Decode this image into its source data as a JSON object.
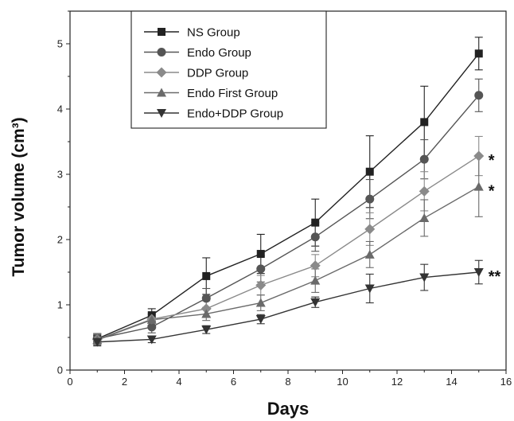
{
  "chart_data": {
    "type": "line",
    "xlabel": "Days",
    "ylabel": "Tumor volume (cm³)",
    "xlim": [
      0,
      16
    ],
    "ylim": [
      0,
      5.5
    ],
    "xticks": [
      "0",
      "2",
      "4",
      "6",
      "8",
      "10",
      "12",
      "14",
      "16"
    ],
    "yticks": [
      "0",
      "1",
      "2",
      "3",
      "4",
      "5"
    ],
    "x": [
      1,
      3,
      5,
      7,
      9,
      11,
      13,
      15
    ],
    "grid": false,
    "legend_position": "top-left",
    "series": [
      {
        "name": "NS Group",
        "marker": "square",
        "color": "#222222",
        "values": [
          0.48,
          0.84,
          1.44,
          1.78,
          2.26,
          3.04,
          3.8,
          4.85
        ],
        "errors": [
          0.08,
          0.1,
          0.28,
          0.3,
          0.36,
          0.55,
          0.55,
          0.25
        ]
      },
      {
        "name": "Endo Group",
        "marker": "circle",
        "color": "#555555",
        "values": [
          0.48,
          0.66,
          1.1,
          1.55,
          2.04,
          2.62,
          3.23,
          4.21
        ],
        "errors": [
          0.08,
          0.09,
          0.15,
          0.2,
          0.22,
          0.3,
          0.3,
          0.25
        ]
      },
      {
        "name": "DDP Group",
        "marker": "diamond",
        "color": "#8a8a8a",
        "values": [
          0.47,
          0.78,
          0.94,
          1.3,
          1.6,
          2.16,
          2.74,
          3.28
        ],
        "errors": [
          0.08,
          0.09,
          0.12,
          0.15,
          0.17,
          0.25,
          0.3,
          0.3
        ]
      },
      {
        "name": "Endo First Group",
        "marker": "triangle-up",
        "color": "#6a6a6a",
        "values": [
          0.46,
          0.77,
          0.86,
          1.03,
          1.37,
          1.77,
          2.33,
          2.81
        ],
        "errors": [
          0.08,
          0.08,
          0.1,
          0.12,
          0.18,
          0.2,
          0.28,
          0.46
        ]
      },
      {
        "name": "Endo+DDP Group",
        "marker": "triangle-down",
        "color": "#333333",
        "values": [
          0.43,
          0.47,
          0.62,
          0.78,
          1.04,
          1.25,
          1.42,
          1.5
        ],
        "errors": [
          0.06,
          0.05,
          0.06,
          0.07,
          0.08,
          0.22,
          0.2,
          0.18
        ]
      }
    ],
    "annotations": [
      {
        "text": "*",
        "series": "DDP Group",
        "x": 15
      },
      {
        "text": "*",
        "series": "Endo First Group",
        "x": 15
      },
      {
        "text": "**",
        "series": "Endo+DDP Group",
        "x": 15
      }
    ]
  }
}
